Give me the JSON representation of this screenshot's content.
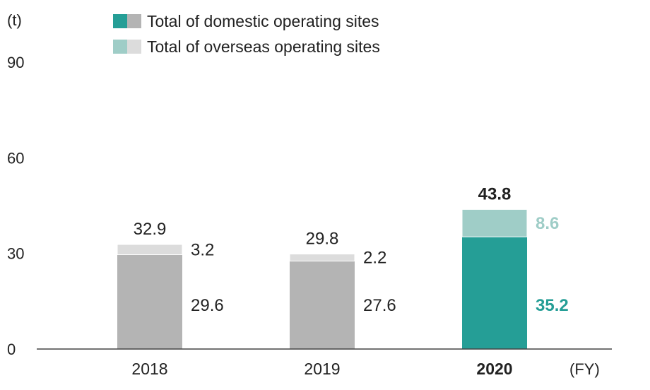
{
  "chart_data": {
    "type": "bar",
    "stacked": true,
    "y_unit": "(t)",
    "x_unit": "(FY)",
    "ylim": [
      0,
      90
    ],
    "yticks": [
      0,
      30,
      60,
      90
    ],
    "grid": false,
    "legend_position": "top",
    "categories": [
      "2018",
      "2019",
      "2020"
    ],
    "highlight_category": "2020",
    "series": [
      {
        "name": "Total of domestic operating sites",
        "values": [
          29.6,
          27.6,
          35.2
        ]
      },
      {
        "name": "Total of overseas operating sites",
        "values": [
          3.2,
          2.2,
          8.6
        ]
      }
    ],
    "totals": [
      32.9,
      29.8,
      43.8
    ],
    "colors": {
      "domestic": "#b4b4b4",
      "overseas": "#dcdcdc",
      "domestic_highlight": "#259e96",
      "overseas_highlight": "#9fcdc7",
      "axis": "#444444",
      "text": "#222222"
    }
  }
}
